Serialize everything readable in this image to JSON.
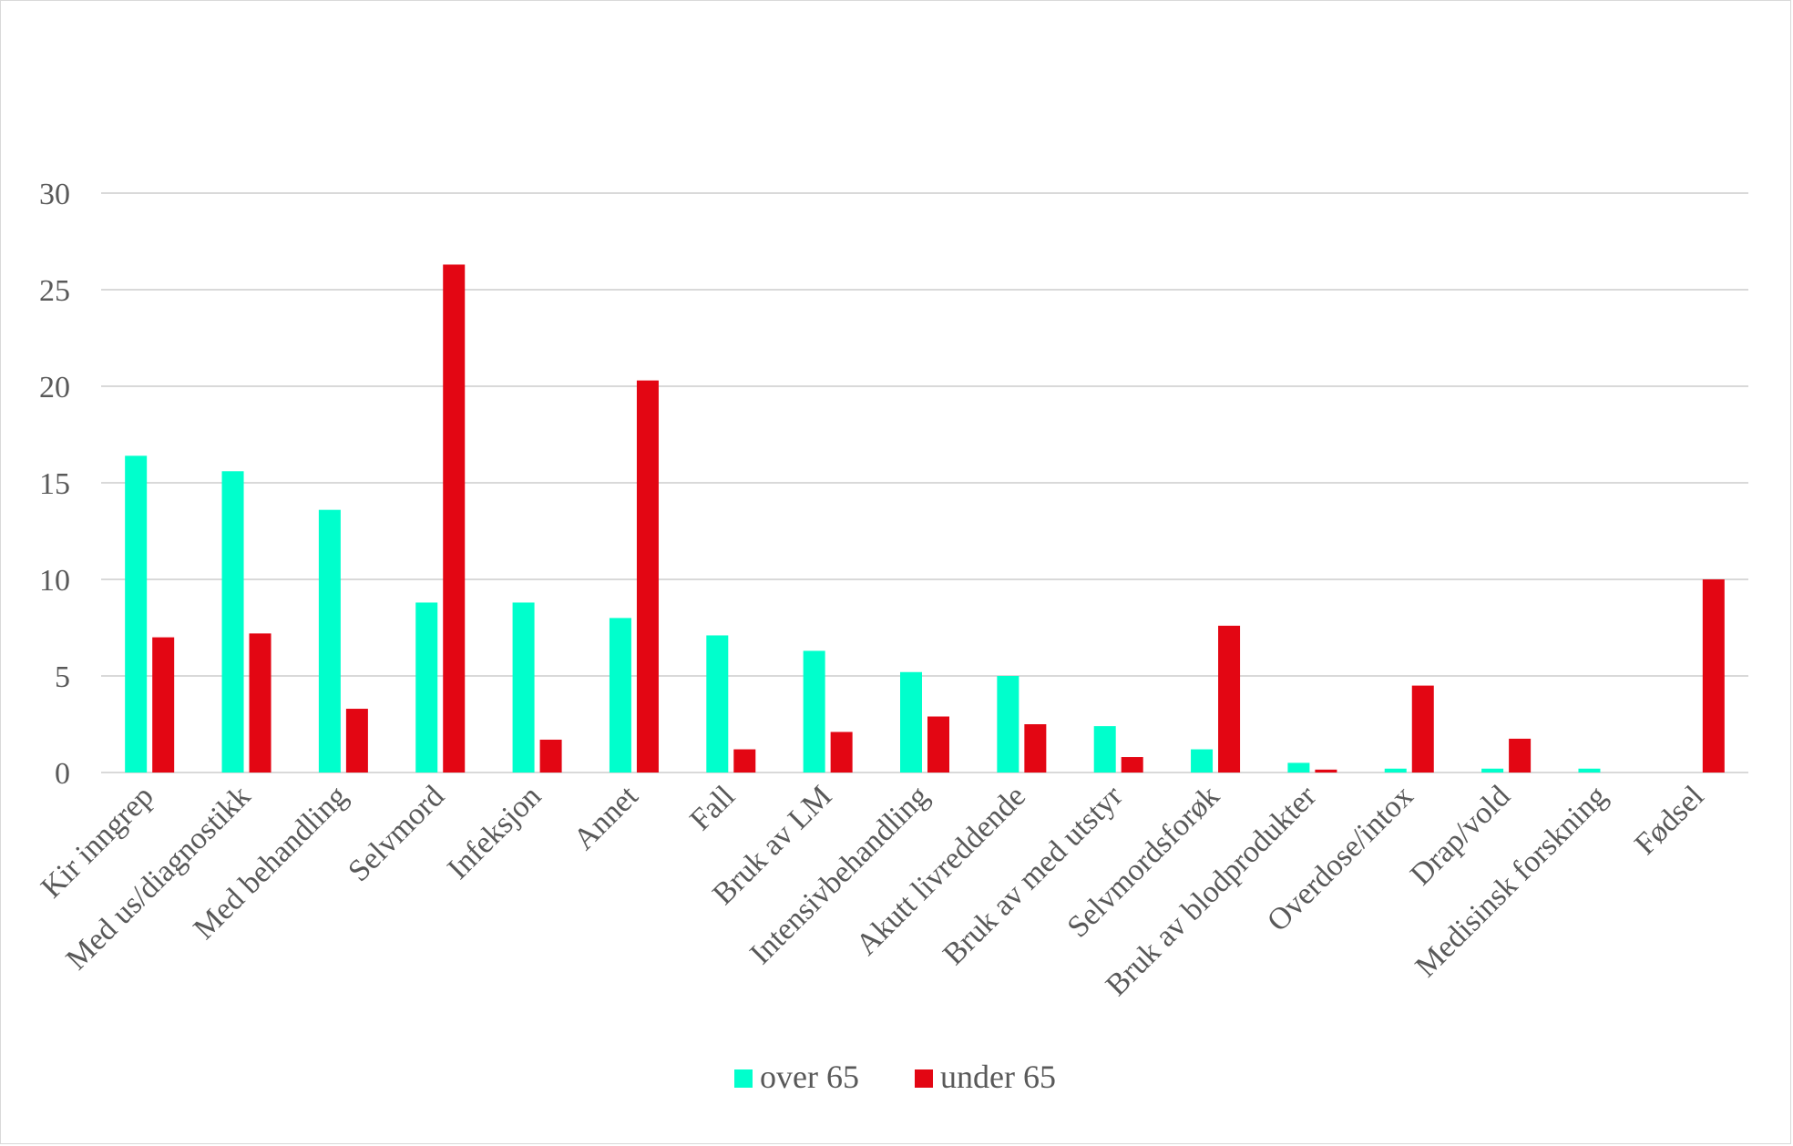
{
  "chart_data": {
    "type": "bar",
    "title": "",
    "xlabel": "",
    "ylabel": "",
    "ylim": [
      0,
      30
    ],
    "yticks": [
      0,
      5,
      10,
      15,
      20,
      25,
      30
    ],
    "grid": true,
    "legend_position": "bottom",
    "categories": [
      "Kir inngrep",
      "Med us/diagnostikk",
      "Med behandling",
      "Selvmord",
      "Infeksjon",
      "Annet",
      "Fall",
      "Bruk av LM",
      "Intensivbehandling",
      "Akutt livreddende",
      "Bruk av med utstyr",
      "Selvmordsforøk",
      "Bruk av blodprodukter",
      "Overdose/intox",
      "Drap/vold",
      "Medisinsk forskning",
      "Fødsel"
    ],
    "series": [
      {
        "name": "over 65",
        "color": "#00ffcc",
        "values": [
          16.4,
          15.6,
          13.6,
          8.8,
          8.8,
          8.0,
          7.1,
          6.3,
          5.2,
          5.0,
          2.4,
          1.2,
          0.5,
          0.2,
          0.2,
          0.2,
          0
        ]
      },
      {
        "name": "under 65",
        "color": "#e30613",
        "values": [
          7.0,
          7.2,
          3.3,
          26.3,
          1.7,
          20.3,
          1.2,
          2.1,
          2.9,
          2.5,
          0.8,
          7.6,
          0.15,
          4.5,
          1.75,
          0,
          10.0
        ]
      }
    ]
  }
}
